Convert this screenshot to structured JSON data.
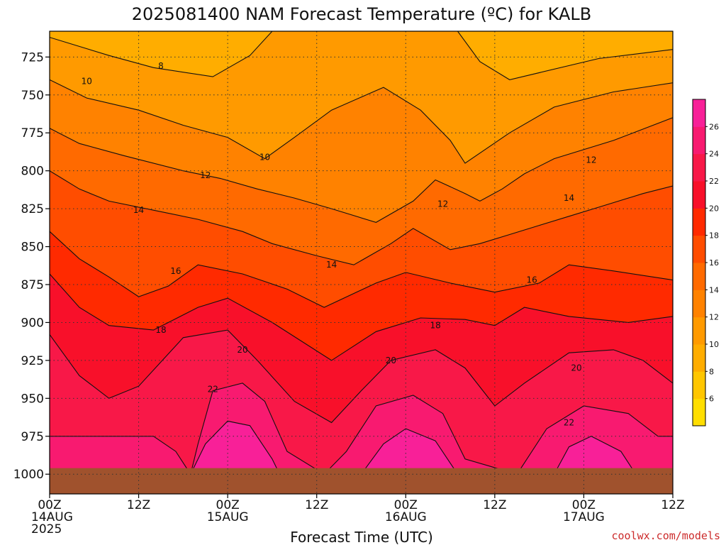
{
  "title": "2025081400 NAM Forecast Temperature (ºC) for KALB",
  "credit": "coolwx.com/models",
  "chart_data": {
    "type": "heatmap",
    "title": "2025081400 NAM Forecast Temperature (ºC) for KALB",
    "xlabel": "Forecast Time (UTC)",
    "ylabel": "",
    "x_range_hours": [
      0,
      84
    ],
    "y_range_hpa": [
      708,
      1013
    ],
    "y_ticks": [
      725,
      750,
      775,
      800,
      825,
      850,
      875,
      900,
      925,
      950,
      975,
      1000
    ],
    "y_tick_labels": [
      "725",
      "750",
      "775",
      "800",
      "825",
      "850",
      "875",
      "900",
      "925",
      "950",
      "975",
      "1000"
    ],
    "x_ticks": [
      {
        "hour": 0,
        "lines": [
          "00Z",
          "14AUG",
          "2025"
        ]
      },
      {
        "hour": 12,
        "lines": [
          "12Z"
        ]
      },
      {
        "hour": 24,
        "lines": [
          "00Z",
          "15AUG"
        ]
      },
      {
        "hour": 36,
        "lines": [
          "12Z"
        ]
      },
      {
        "hour": 48,
        "lines": [
          "00Z",
          "16AUG"
        ]
      },
      {
        "hour": 60,
        "lines": [
          "12Z"
        ]
      },
      {
        "hour": 72,
        "lines": [
          "00Z",
          "17AUG"
        ]
      },
      {
        "hour": 84,
        "lines": [
          "12Z"
        ]
      }
    ],
    "grid": true,
    "colorbar": {
      "position": "right",
      "levels": [
        4,
        6,
        8,
        10,
        12,
        14,
        16,
        18,
        20,
        22,
        24,
        26,
        28
      ],
      "tick_labels": [
        "6",
        "8",
        "10",
        "12",
        "14",
        "16",
        "18",
        "20",
        "22",
        "24",
        "26"
      ],
      "colors": [
        "#ffde00",
        "#ffc600",
        "#ffad00",
        "#ff9a00",
        "#ff8200",
        "#ff6a00",
        "#ff4d00",
        "#ff2a00",
        "#f8102a",
        "#f81848",
        "#f81a70",
        "#f82098"
      ]
    },
    "terrain_color": "#a0522d",
    "surface_pressure_hpa": 996,
    "series": [
      {
        "level": 8,
        "label": "8",
        "pressure": [
          712,
          724,
          732,
          738,
          724,
          708,
          708,
          708,
          728,
          740,
          726,
          720
        ],
        "hours": [
          0,
          8,
          14,
          22,
          27,
          30,
          42,
          55,
          58,
          62,
          74,
          84
        ]
      },
      {
        "level": 10,
        "label": "10",
        "pressure": [
          740,
          752,
          760,
          770,
          778,
          792,
          778,
          760,
          745,
          760,
          780,
          795,
          775,
          758,
          748,
          742
        ],
        "hours": [
          0,
          5,
          12,
          18,
          24,
          29,
          33,
          38,
          45,
          50,
          54,
          56,
          62,
          68,
          76,
          84
        ]
      },
      {
        "level": 12,
        "label": "12",
        "pressure": [
          772,
          782,
          790,
          800,
          805,
          812,
          818,
          825,
          834,
          820,
          806,
          815,
          820,
          812,
          802,
          792,
          780,
          765
        ],
        "hours": [
          0,
          4,
          10,
          18,
          23,
          28,
          33,
          38,
          44,
          49,
          52,
          56,
          58,
          61,
          64,
          68,
          76,
          84
        ]
      },
      {
        "level": 14,
        "label": "14",
        "pressure": [
          800,
          812,
          820,
          826,
          832,
          840,
          848,
          856,
          862,
          848,
          838,
          852,
          848,
          842,
          836,
          830,
          824,
          815,
          810
        ],
        "hours": [
          0,
          4,
          8,
          14,
          20,
          26,
          30,
          36,
          41,
          46,
          49,
          54,
          58,
          62,
          66,
          70,
          74,
          80,
          84
        ]
      },
      {
        "level": 16,
        "label": "16",
        "pressure": [
          840,
          858,
          870,
          883,
          876,
          862,
          868,
          878,
          890,
          874,
          867,
          874,
          880,
          874,
          862,
          866,
          872
        ],
        "hours": [
          0,
          4,
          8,
          12,
          16,
          20,
          26,
          32,
          37,
          44,
          48,
          54,
          60,
          66,
          70,
          76,
          84
        ]
      },
      {
        "level": 18,
        "label": "18",
        "pressure": [
          868,
          890,
          902,
          905,
          890,
          884,
          900,
          925,
          906,
          897,
          898,
          902,
          890,
          896,
          900,
          896
        ],
        "hours": [
          0,
          4,
          8,
          14,
          20,
          24,
          30,
          38,
          44,
          50,
          56,
          60,
          64,
          70,
          78,
          84
        ]
      },
      {
        "level": 20,
        "label": "20",
        "pressure": [
          908,
          935,
          950,
          942,
          910,
          905,
          925,
          952,
          966,
          945,
          925,
          918,
          930,
          955,
          940,
          920,
          918,
          925,
          940
        ],
        "hours": [
          0,
          4,
          8,
          12,
          18,
          24,
          28,
          33,
          38,
          42,
          46,
          52,
          56,
          60,
          64,
          70,
          76,
          80,
          84
        ]
      },
      {
        "level": 22,
        "label": "22",
        "pressure": [
          975,
          985,
          1000,
          980,
          945,
          940,
          952,
          985,
          1000,
          985,
          955,
          948,
          960,
          990,
          1000,
          970,
          955,
          960,
          975
        ],
        "hours": [
          14,
          17,
          19,
          20,
          22,
          26,
          29,
          32,
          37,
          40,
          44,
          49,
          53,
          56,
          63,
          67,
          72,
          78,
          82
        ]
      },
      {
        "level": 24,
        "label": "",
        "pressure": [
          1000,
          980,
          965,
          968,
          990,
          1000
        ],
        "hours": [
          19,
          21,
          24,
          27,
          30,
          31
        ]
      },
      {
        "level": 24,
        "label": "",
        "pressure": [
          1000,
          980,
          970,
          978,
          1000
        ],
        "hours": [
          42,
          45,
          48,
          52,
          55
        ]
      },
      {
        "level": 24,
        "label": "",
        "pressure": [
          1000,
          982,
          975,
          985,
          1000
        ],
        "hours": [
          68,
          70,
          73,
          77,
          79
        ]
      }
    ],
    "contour_labels": [
      {
        "text": "8",
        "hour": 15,
        "pressure": 731
      },
      {
        "text": "10",
        "hour": 5,
        "pressure": 741
      },
      {
        "text": "10",
        "hour": 29,
        "pressure": 791
      },
      {
        "text": "12",
        "hour": 21,
        "pressure": 803
      },
      {
        "text": "12",
        "hour": 53,
        "pressure": 822
      },
      {
        "text": "12",
        "hour": 73,
        "pressure": 793
      },
      {
        "text": "14",
        "hour": 12,
        "pressure": 826
      },
      {
        "text": "14",
        "hour": 38,
        "pressure": 862
      },
      {
        "text": "14",
        "hour": 70,
        "pressure": 818
      },
      {
        "text": "16",
        "hour": 17,
        "pressure": 866
      },
      {
        "text": "16",
        "hour": 65,
        "pressure": 872
      },
      {
        "text": "18",
        "hour": 15,
        "pressure": 905
      },
      {
        "text": "18",
        "hour": 52,
        "pressure": 902
      },
      {
        "text": "20",
        "hour": 26,
        "pressure": 918
      },
      {
        "text": "20",
        "hour": 46,
        "pressure": 925
      },
      {
        "text": "20",
        "hour": 71,
        "pressure": 930
      },
      {
        "text": "22",
        "hour": 22,
        "pressure": 944
      },
      {
        "text": "22",
        "hour": 70,
        "pressure": 966
      }
    ]
  }
}
